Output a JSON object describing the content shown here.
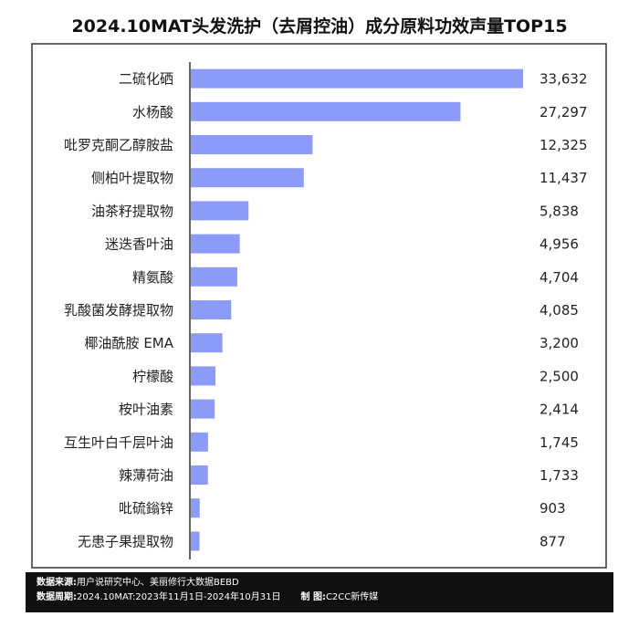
{
  "title": "2024.10MAT头发洗护（去屑控油）成分原料功效声量TOP15",
  "footer": {
    "source_label": "数据来源:",
    "source_value": "用户说研究中心、美丽修行大数据BEBD",
    "period_label": "数据周期:",
    "period_value": "2024.10MAT:2023年11月1日-2024年10月31日",
    "maker_label": "制    图:",
    "maker_value": "C2CC新传媒"
  },
  "colors": {
    "bar": "#8c9bf7",
    "axis": "#333333"
  },
  "chart_data": {
    "type": "bar",
    "orientation": "horizontal",
    "title": "2024.10MAT头发洗护（去屑控油）成分原料功效声量TOP15",
    "categories": [
      "二硫化硒",
      "水杨酸",
      "吡罗克酮乙醇胺盐",
      "侧柏叶提取物",
      "油茶籽提取物",
      "迷迭香叶油",
      "精氨酸",
      "乳酸菌发酵提取物",
      "椰油酰胺 EMA",
      "柠檬酸",
      "桉叶油素",
      "互生叶白千层叶油",
      "辣薄荷油",
      "吡硫鎓锌",
      "无患子果提取物"
    ],
    "values": [
      33632,
      27297,
      12325,
      11437,
      5838,
      4956,
      4704,
      4085,
      3200,
      2500,
      2414,
      1745,
      1733,
      903,
      877
    ],
    "value_labels": [
      "33,632",
      "27,297",
      "12,325",
      "11,437",
      "5,838",
      "4,956",
      "4,704",
      "4,085",
      "3,200",
      "2,500",
      "2,414",
      "1,745",
      "1,733",
      "903",
      "877"
    ],
    "xlim": [
      0,
      33632
    ],
    "grid": false,
    "legend": "none"
  }
}
